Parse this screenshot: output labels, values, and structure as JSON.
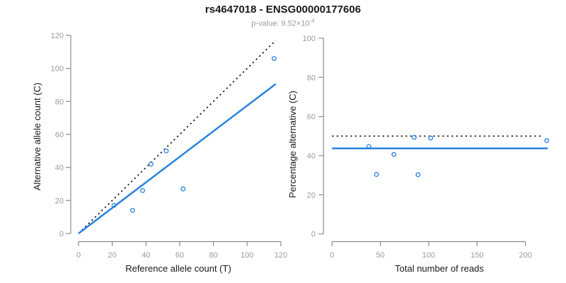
{
  "header": {
    "title": "rs4647018 - ENSG00000177606",
    "pvalue_label": "p-value: 9.52×10",
    "pvalue_exponent": "-4"
  },
  "colors": {
    "accent_blue": "#2B82E0",
    "line_black": "#1a1a1a",
    "axis_gray": "#8c8c8c",
    "tick_label_gray": "#9a9a9a",
    "axis_title_black": "#1a1a1a"
  },
  "chart_data": [
    {
      "type": "scatter",
      "panel": "allele-counts",
      "xlabel": "Reference allele count (T)",
      "ylabel": "Alternative allele count (C)",
      "xlim": [
        0,
        120
      ],
      "ylim": [
        0,
        120
      ],
      "xticks": [
        0,
        20,
        40,
        60,
        80,
        100,
        120
      ],
      "yticks": [
        0,
        20,
        40,
        60,
        80,
        100,
        120
      ],
      "grid": false,
      "legend": "none",
      "points": [
        [
          21,
          17
        ],
        [
          32,
          14
        ],
        [
          38,
          26
        ],
        [
          43,
          42
        ],
        [
          52,
          50
        ],
        [
          62,
          27
        ],
        [
          116,
          106
        ]
      ],
      "lines": [
        {
          "name": "identity-line",
          "style": "dotted",
          "color_key": "line_black",
          "points": [
            [
              0,
              0
            ],
            [
              117,
              117
            ]
          ]
        },
        {
          "name": "fit-line",
          "style": "solid",
          "color_key": "accent_blue",
          "points": [
            [
              0,
              0
            ],
            [
              117,
              90.6
            ]
          ]
        }
      ]
    },
    {
      "type": "scatter",
      "panel": "percentage-vs-coverage",
      "xlabel": "Total number of reads",
      "ylabel": "Percentage alternative (C)",
      "xlim": [
        0,
        223
      ],
      "ylim": [
        0,
        100
      ],
      "xticks": [
        0,
        50,
        100,
        150,
        200
      ],
      "yticks": [
        0,
        20,
        40,
        60,
        80,
        100
      ],
      "grid": false,
      "legend": "none",
      "points": [
        [
          38,
          44.7
        ],
        [
          46,
          30.4
        ],
        [
          64,
          40.6
        ],
        [
          85,
          49.4
        ],
        [
          89,
          30.3
        ],
        [
          102,
          49.0
        ],
        [
          222,
          47.7
        ]
      ],
      "lines": [
        {
          "name": "null-50pct-line",
          "style": "dotted",
          "color_key": "line_black",
          "points": [
            [
              0,
              50
            ],
            [
              216,
              50
            ]
          ]
        },
        {
          "name": "mean-pct-line",
          "style": "solid",
          "color_key": "accent_blue",
          "points": [
            [
              0,
              43.7
            ],
            [
              223,
              43.7
            ]
          ]
        }
      ]
    }
  ]
}
